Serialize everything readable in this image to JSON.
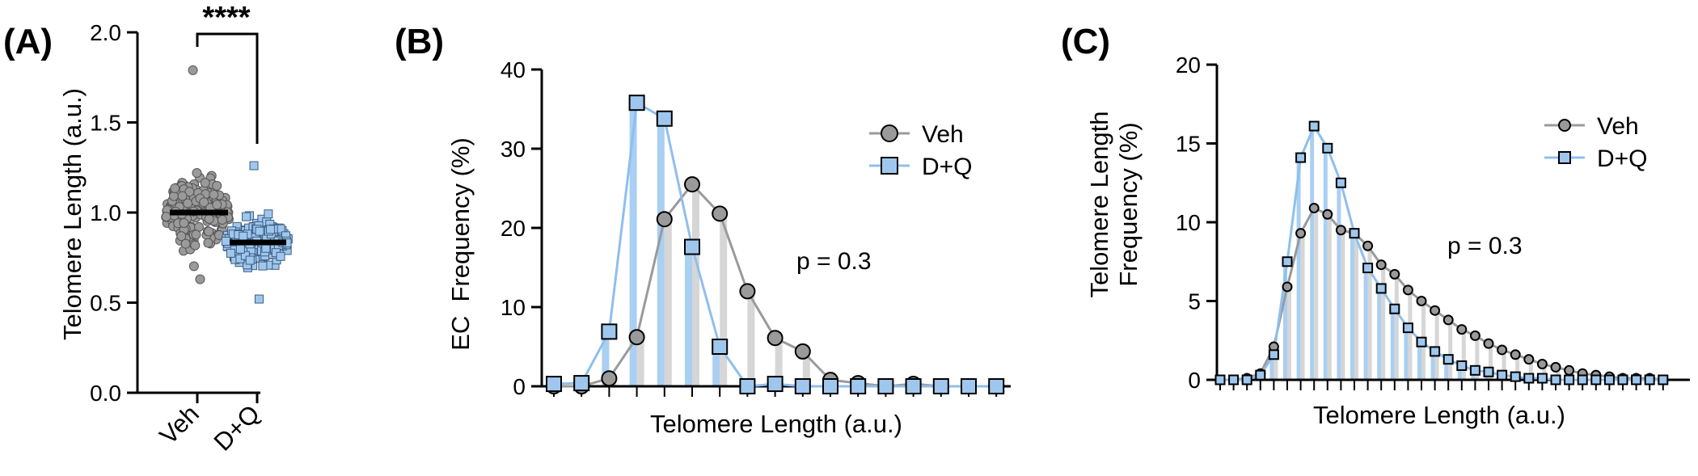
{
  "colors": {
    "veh_fill": "#9a9a9a",
    "veh_line": "#9a9a9a",
    "veh_bar": "#d6d6d6",
    "dq_fill": "#9fc7ee",
    "dq_line": "#8ebfee",
    "dq_bar": "#a9cff2",
    "axis": "#000000"
  },
  "chart_data": [
    {
      "panel": "(A)",
      "type": "scatter",
      "categories": [
        "Veh",
        "D+Q"
      ],
      "ylabel": "Telomere Length (a.u.)",
      "ylim": [
        0,
        2.0
      ],
      "yticks": [
        "0.0",
        "0.5",
        "1.0",
        "1.5",
        "2.0"
      ],
      "series": [
        {
          "name": "Veh",
          "marker": "circle",
          "mean": 1.0,
          "min": 0.63,
          "max": 1.79,
          "n": 220
        },
        {
          "name": "D+Q",
          "marker": "square",
          "mean": 0.83,
          "min": 0.52,
          "max": 1.26,
          "n": 200
        }
      ],
      "significance": "****"
    },
    {
      "panel": "(B)",
      "type": "line",
      "xlabel": "Telomere Length (a.u.)",
      "ylabel": "EC  Frequency (%)",
      "ylim": [
        0,
        40
      ],
      "yticks": [
        "0",
        "10",
        "20",
        "30",
        "40"
      ],
      "bins": 17,
      "series": [
        {
          "name": "Veh",
          "marker": "circle",
          "values": [
            0,
            0,
            1.0,
            6.2,
            21.1,
            25.5,
            21.8,
            12.0,
            6.1,
            4.4,
            0.8,
            0.4,
            0,
            0.3,
            0,
            0,
            0
          ]
        },
        {
          "name": "D+Q",
          "marker": "square",
          "values": [
            0.3,
            0.4,
            6.9,
            35.8,
            33.8,
            17.6,
            5.0,
            0,
            0.3,
            0,
            0,
            0,
            0,
            0,
            0,
            0,
            0
          ]
        }
      ],
      "legend": [
        "Veh",
        "D+Q"
      ],
      "annotation": "p = 0.3"
    },
    {
      "panel": "(C)",
      "type": "line",
      "xlabel": "Telomere Length (a.u.)",
      "ylabel": [
        "Telomere Length",
        "Frequency (%)"
      ],
      "ylim": [
        0,
        20
      ],
      "yticks": [
        "0",
        "5",
        "10",
        "15",
        "20"
      ],
      "bins": 34,
      "series": [
        {
          "name": "Veh",
          "marker": "circle",
          "values": [
            0,
            0,
            0.1,
            0.4,
            2.1,
            5.9,
            9.3,
            10.9,
            10.5,
            9.5,
            9.3,
            8.5,
            7.3,
            6.7,
            5.7,
            5.0,
            4.4,
            3.8,
            3.2,
            2.8,
            2.3,
            1.9,
            1.6,
            1.3,
            1.0,
            0.8,
            0.6,
            0.4,
            0.3,
            0.2,
            0.1,
            0.1,
            0.1,
            0
          ]
        },
        {
          "name": "D+Q",
          "marker": "square",
          "values": [
            0,
            0,
            0,
            0.3,
            1.6,
            7.5,
            14.1,
            16.1,
            14.7,
            12.5,
            9.3,
            7.1,
            5.8,
            4.5,
            3.3,
            2.4,
            1.8,
            1.3,
            0.9,
            0.6,
            0.5,
            0.3,
            0.2,
            0.1,
            0.1,
            0,
            0,
            0,
            0,
            0,
            0,
            0,
            0,
            0
          ]
        }
      ],
      "legend": [
        "Veh",
        "D+Q"
      ],
      "annotation": "p = 0.3"
    }
  ]
}
